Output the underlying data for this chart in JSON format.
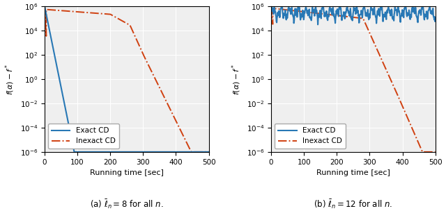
{
  "xlim": [
    0,
    500
  ],
  "ylim_log_min": 1e-06,
  "ylim_log_max": 1000000.0,
  "xlabel": "Running time [sec]",
  "ylabel": "$f(\\alpha) - f^*$",
  "exact_color": "#2878b5",
  "inexact_color": "#d04010",
  "bg_color": "#efefef",
  "grid_color": "#ffffff",
  "legend_labels": [
    "Exact CD",
    "Inexact CD"
  ],
  "subtitle_left": "(a) $\\bar{\\ell}_n = 8$ for all $n$.",
  "subtitle_right": "(b) $\\bar{\\ell}_n = 12$ for all $n$."
}
